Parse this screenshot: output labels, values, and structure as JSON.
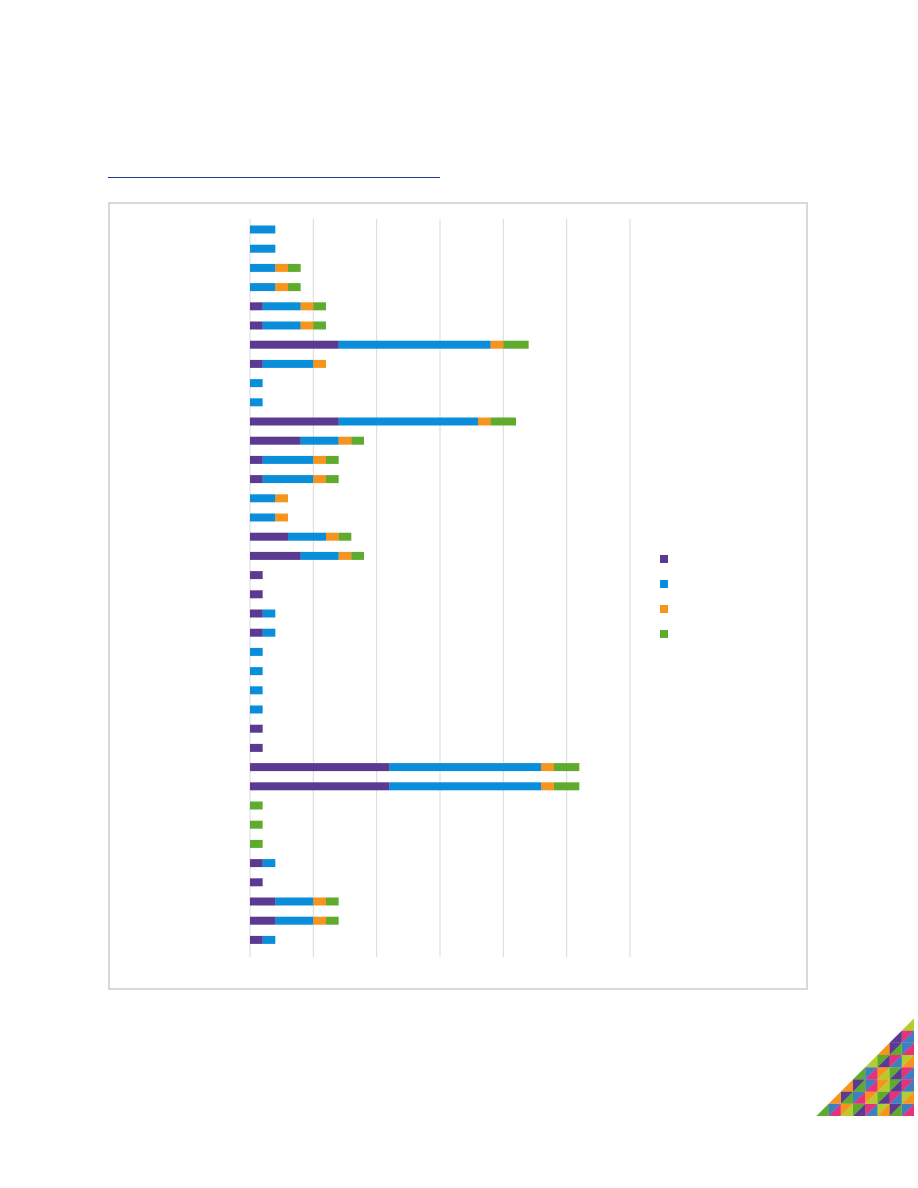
{
  "colors": {
    "series": [
      "#5b3a91",
      "#0a8ed9",
      "#f7941d",
      "#5fab2e"
    ],
    "grid": "#d9d9d9",
    "title_rule": "#1f3c88",
    "decoration": [
      "#e4327c",
      "#5fab2e",
      "#f7941d",
      "#3d7fc1",
      "#5b3a91",
      "#b5cc2e"
    ]
  },
  "chart_data": {
    "type": "bar",
    "orientation": "horizontal",
    "stacked": true,
    "title": "",
    "xlabel": "",
    "ylabel": "",
    "xlim": [
      0,
      6
    ],
    "grid": true,
    "legend_position": "right",
    "categories": [
      "",
      "",
      "",
      "",
      "",
      "",
      "",
      "",
      "",
      "",
      "",
      "",
      "",
      "",
      "",
      "",
      "",
      "",
      "",
      "",
      "",
      "",
      "",
      "",
      "",
      "",
      "",
      "",
      "",
      "",
      "",
      "",
      "",
      "",
      "",
      "",
      "",
      ""
    ],
    "series": [
      {
        "values": [
          0,
          0,
          0,
          0,
          0.2,
          0.2,
          1.4,
          0.2,
          0,
          0,
          1.4,
          0.8,
          0.2,
          0.2,
          0,
          0,
          0.6,
          0.8,
          0.2,
          0.2,
          0.2,
          0.2,
          0,
          0,
          0,
          0,
          0.2,
          0.2,
          2.2,
          2.2,
          0,
          0,
          0,
          0.2,
          0.2,
          0.4,
          0.4,
          0.2
        ]
      },
      {
        "values": [
          0.4,
          0.4,
          0.4,
          0.4,
          0.6,
          0.6,
          2.4,
          0.8,
          0.2,
          0.2,
          2.2,
          0.6,
          0.8,
          0.8,
          0.4,
          0.4,
          0.6,
          0.6,
          0,
          0,
          0.2,
          0.2,
          0.2,
          0.2,
          0.2,
          0.2,
          0,
          0,
          2.4,
          2.4,
          0,
          0,
          0,
          0.2,
          0,
          0.6,
          0.6,
          0.2
        ]
      },
      {
        "values": [
          0,
          0,
          0.2,
          0.2,
          0.2,
          0.2,
          0.2,
          0.2,
          0,
          0,
          0.2,
          0.2,
          0.2,
          0.2,
          0.2,
          0.2,
          0.2,
          0.2,
          0,
          0,
          0,
          0,
          0,
          0,
          0,
          0,
          0,
          0,
          0.2,
          0.2,
          0,
          0,
          0,
          0,
          0,
          0.2,
          0.2,
          0
        ]
      },
      {
        "values": [
          0,
          0,
          0.2,
          0.2,
          0.2,
          0.2,
          0.4,
          0,
          0,
          0,
          0.4,
          0.2,
          0.2,
          0.2,
          0,
          0,
          0.2,
          0.2,
          0,
          0,
          0,
          0,
          0,
          0,
          0,
          0,
          0,
          0,
          0.4,
          0.4,
          0.2,
          0.2,
          0.2,
          0,
          0,
          0.2,
          0.2,
          0
        ]
      }
    ]
  },
  "legend": {
    "entries": [
      "",
      "",
      "",
      ""
    ]
  }
}
